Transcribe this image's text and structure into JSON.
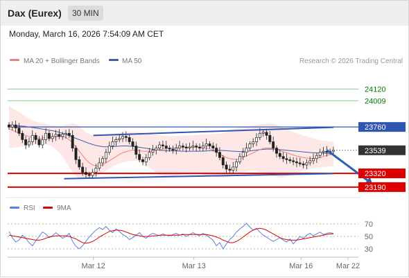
{
  "header": {
    "instrument": "Dax (Eurex)",
    "timeframe": "30 MIN",
    "datetime": "Monday, March 16, 2026 7:54:09 AM CET"
  },
  "legend": {
    "ma20": "MA 20 + Bollinger Bands",
    "ma50": "MA 50",
    "copyright": "Research © 2026 Trading Central",
    "rsi": "RSI",
    "ma9": "9MA"
  },
  "colors": {
    "ma20": "#f08080",
    "bollinger_fill": "#fde3e3",
    "ma50": "#3b5fa8",
    "candles": "#222222",
    "channel": "#2f56b0",
    "support": "#dd0000",
    "target": "#008000",
    "last_price_tag": "#333333",
    "forecast_arrow": "#2c5fad",
    "rsi": "#5b7fdc",
    "rsi_ma": "#dd0000"
  },
  "chart_data": [
    {
      "type": "candlestick",
      "title": "",
      "x_ticks": [
        "Mar 12",
        "Mar 13",
        "Mar 16",
        "Mar 22"
      ],
      "ylim": [
        23130,
        24300
      ],
      "last_price": 23539,
      "levels": [
        {
          "value": 24120,
          "label": "24120",
          "kind": "target"
        },
        {
          "value": 24009,
          "label": "24009",
          "kind": "target"
        },
        {
          "value": 23760,
          "label": "23760",
          "kind": "resistance"
        },
        {
          "value": 23320,
          "label": "23320",
          "kind": "support"
        },
        {
          "value": 23190,
          "label": "23190",
          "kind": "support"
        }
      ],
      "channel": {
        "upper": {
          "x": [
            0.26,
            1.0
          ],
          "y": [
            23680,
            23757
          ]
        },
        "lower": {
          "x": [
            0.17,
            1.0
          ],
          "y": [
            23270,
            23318
          ]
        }
      },
      "forecast": {
        "from": {
          "x": 0.98,
          "y": 23540
        },
        "to": {
          "x": 1.12,
          "y": 23220
        }
      },
      "closes": [
        23760,
        23780,
        23750,
        23700,
        23640,
        23590,
        23620,
        23680,
        23640,
        23590,
        23640,
        23700,
        23650,
        23670,
        23690,
        23670,
        23690,
        23700,
        23680,
        23560,
        23450,
        23380,
        23330,
        23310,
        23300,
        23330,
        23370,
        23420,
        23460,
        23520,
        23580,
        23620,
        23640,
        23650,
        23670,
        23660,
        23620,
        23580,
        23500,
        23450,
        23430,
        23470,
        23520,
        23540,
        23560,
        23590,
        23580,
        23560,
        23550,
        23540,
        23560,
        23580,
        23570,
        23560,
        23570,
        23580,
        23570,
        23560,
        23580,
        23600,
        23580,
        23560,
        23520,
        23470,
        23400,
        23360,
        23350,
        23380,
        23430,
        23480,
        23520,
        23560,
        23600,
        23620,
        23660,
        23700,
        23710,
        23680,
        23620,
        23560,
        23510,
        23480,
        23460,
        23450,
        23440,
        23430,
        23420,
        23410,
        23400,
        23420,
        23440,
        23460,
        23490,
        23520,
        23530,
        23520,
        23530,
        23540
      ],
      "ma20": [
        23740,
        23730,
        23715,
        23700,
        23690,
        23680,
        23670,
        23660,
        23655,
        23650,
        23655,
        23660,
        23660,
        23665,
        23670,
        23670,
        23668,
        23660,
        23640,
        23610,
        23570,
        23530,
        23490,
        23450,
        23420,
        23400,
        23390,
        23390,
        23400,
        23420,
        23440,
        23460,
        23480,
        23500,
        23515,
        23525,
        23535,
        23540,
        23540,
        23535,
        23530,
        23528,
        23530,
        23535,
        23540,
        23545,
        23550,
        23555,
        23558,
        23560,
        23562,
        23565,
        23566,
        23566,
        23567,
        23568,
        23568,
        23566,
        23564,
        23560,
        23552,
        23540,
        23520,
        23500,
        23485,
        23470,
        23460,
        23455,
        23455,
        23460,
        23470,
        23485,
        23500,
        23515,
        23530,
        23545,
        23555,
        23560,
        23560,
        23555,
        23545,
        23535,
        23525,
        23515,
        23505,
        23495,
        23485,
        23478,
        23470,
        23465,
        23462,
        23462,
        23465,
        23470,
        23480,
        23490,
        23500,
        23508
      ],
      "bollinger_upper": [
        23960,
        23940,
        23920,
        23900,
        23880,
        23860,
        23840,
        23825,
        23810,
        23800,
        23795,
        23790,
        23780,
        23775,
        23770,
        23765,
        23770,
        23780,
        23790,
        23795,
        23790,
        23770,
        23740,
        23710,
        23690,
        23680,
        23675,
        23675,
        23680,
        23685,
        23690,
        23695,
        23700,
        23705,
        23710,
        23712,
        23714,
        23716,
        23716,
        23712,
        23706,
        23700,
        23695,
        23690,
        23685,
        23680,
        23678,
        23676,
        23675,
        23674,
        23674,
        23675,
        23676,
        23678,
        23680,
        23682,
        23684,
        23686,
        23688,
        23690,
        23692,
        23694,
        23696,
        23698,
        23700,
        23710,
        23725,
        23740,
        23750,
        23755,
        23760,
        23765,
        23770,
        23775,
        23780,
        23785,
        23790,
        23793,
        23795,
        23790,
        23780,
        23768,
        23755,
        23740,
        23725,
        23710,
        23700,
        23690,
        23680,
        23670,
        23660,
        23650,
        23642,
        23635,
        23630,
        23626,
        23622,
        23620
      ],
      "bollinger_lower": [
        23560,
        23560,
        23565,
        23570,
        23575,
        23580,
        23585,
        23590,
        23595,
        23600,
        23600,
        23598,
        23590,
        23575,
        23550,
        23520,
        23480,
        23430,
        23380,
        23330,
        23290,
        23275,
        23268,
        23268,
        23270,
        23280,
        23295,
        23310,
        23325,
        23345,
        23365,
        23385,
        23400,
        23415,
        23425,
        23432,
        23438,
        23440,
        23438,
        23432,
        23420,
        23400,
        23375,
        23350,
        23325,
        23305,
        23295,
        23290,
        23290,
        23295,
        23300,
        23305,
        23310,
        23315,
        23320,
        23320,
        23318,
        23314,
        23308,
        23300,
        23295,
        23290,
        23285,
        23282,
        23280,
        23285,
        23290,
        23300,
        23310,
        23320,
        23330,
        23340,
        23345,
        23345,
        23340,
        23330,
        23320,
        23315,
        23305,
        23295,
        23285,
        23280,
        23282,
        23290,
        23300,
        23312,
        23325,
        23337,
        23347,
        23355,
        23362,
        23367,
        23372,
        23376,
        23380,
        23384,
        23388,
        23392
      ],
      "ma50": [
        23780,
        23775,
        23772,
        23770,
        23768,
        23765,
        23760,
        23755,
        23750,
        23745,
        23740,
        23735,
        23730,
        23724,
        23718,
        23710,
        23700,
        23690,
        23678,
        23665,
        23652,
        23640,
        23628,
        23616,
        23604,
        23594,
        23585,
        23578,
        23574,
        23572,
        23572,
        23574,
        23576,
        23578,
        23580,
        23580,
        23578,
        23575,
        23572,
        23568,
        23563,
        23558,
        23553,
        23548,
        23544,
        23540,
        23537,
        23535,
        23534,
        23533,
        23532,
        23531,
        23530,
        23530,
        23530,
        23530,
        23530,
        23530,
        23531,
        23533,
        23535,
        23537,
        23538,
        23538,
        23537,
        23535,
        23533,
        23530,
        23528,
        23527,
        23528,
        23530,
        23533,
        23537,
        23541,
        23545,
        23548,
        23550,
        23551,
        23550,
        23548,
        23545,
        23542,
        23539,
        23536,
        23533,
        23530,
        23527,
        23524,
        23521,
        23518,
        23516,
        23514,
        23512,
        23511,
        23510,
        23510,
        23510
      ]
    },
    {
      "type": "line",
      "title": "",
      "ylim": [
        20,
        80
      ],
      "y_ticks": [
        70,
        50,
        30
      ],
      "series": [
        {
          "name": "RSI",
          "values": [
            58,
            48,
            41,
            44,
            52,
            47,
            40,
            35,
            43,
            50,
            57,
            54,
            48,
            51,
            56,
            52,
            47,
            50,
            55,
            42,
            34,
            30,
            35,
            42,
            49,
            55,
            60,
            64,
            61,
            66,
            60,
            56,
            62,
            58,
            53,
            50,
            45,
            48,
            52,
            56,
            50,
            47,
            52,
            55,
            53,
            51,
            54,
            52,
            51,
            53,
            55,
            52,
            54,
            50,
            53,
            56,
            53,
            51,
            55,
            52,
            48,
            44,
            35,
            40,
            30,
            38,
            45,
            50,
            57,
            62,
            66,
            71,
            65,
            60,
            63,
            57,
            52,
            49,
            45,
            42,
            45,
            48,
            44,
            41,
            46,
            38,
            44,
            50,
            47,
            52,
            55,
            51,
            54,
            57,
            53,
            55,
            56,
            55
          ]
        },
        {
          "name": "9MA",
          "values": [
            52,
            51,
            50,
            49,
            48,
            47,
            46,
            45,
            44,
            44,
            45,
            47,
            49,
            50,
            51,
            51,
            51,
            51,
            50,
            48,
            46,
            43,
            40,
            39,
            40,
            42,
            45,
            49,
            52,
            55,
            58,
            59,
            60,
            60,
            59,
            57,
            55,
            53,
            52,
            51,
            50,
            50,
            50,
            51,
            51,
            52,
            52,
            52,
            52,
            52,
            52,
            52,
            53,
            53,
            53,
            53,
            53,
            53,
            53,
            53,
            52,
            51,
            49,
            47,
            44,
            42,
            40,
            40,
            42,
            45,
            49,
            53,
            57,
            60,
            62,
            63,
            62,
            60,
            57,
            54,
            51,
            48,
            46,
            45,
            44,
            44,
            44,
            45,
            46,
            47,
            48,
            49,
            50,
            51,
            52,
            53,
            54,
            54
          ]
        }
      ]
    }
  ]
}
